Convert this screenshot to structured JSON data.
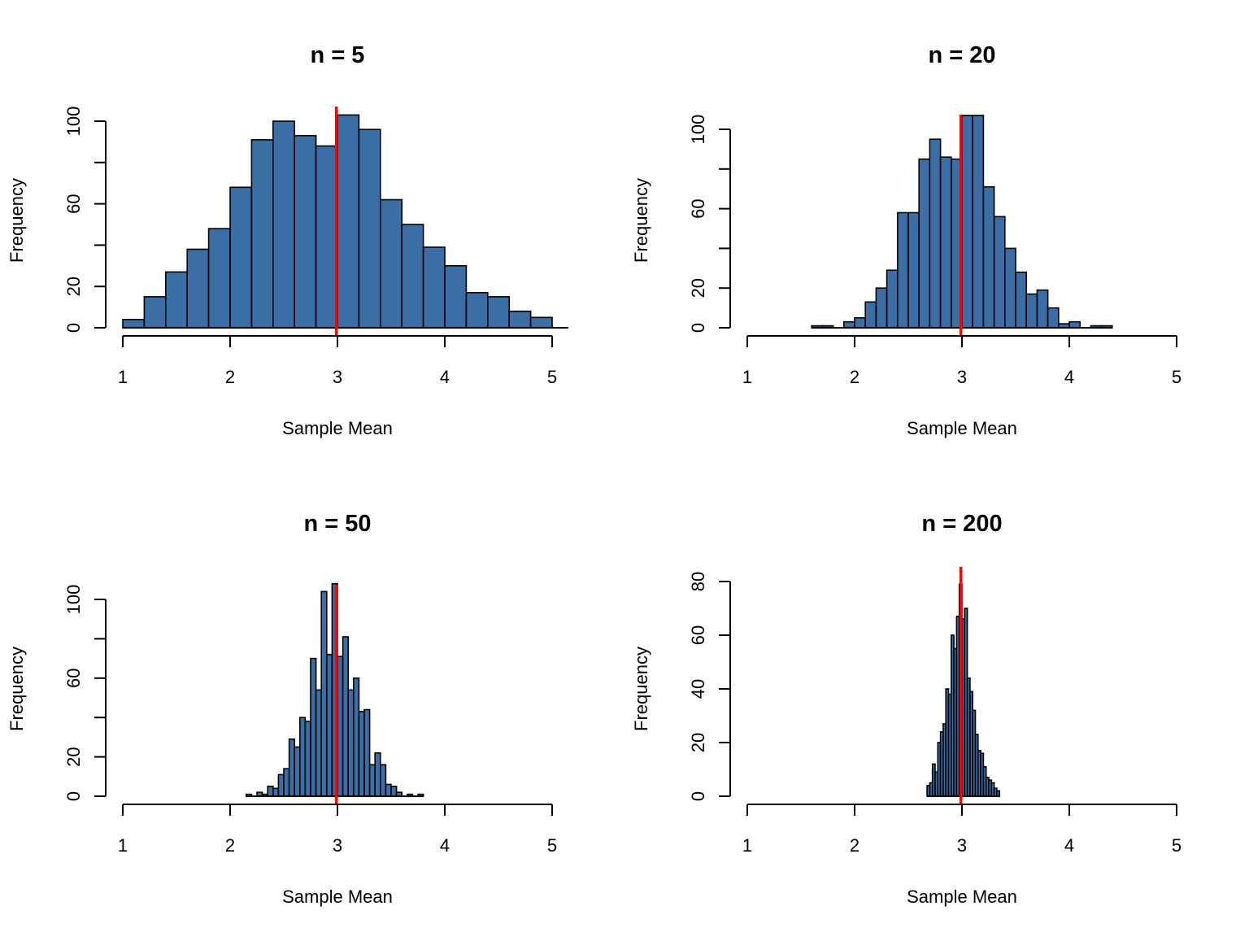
{
  "colors": {
    "bar_fill": "#3a6ea5",
    "bar_stroke": "#000000",
    "mean_line": "#ff0000",
    "axis": "#000000"
  },
  "chart_data": [
    {
      "type": "bar",
      "title": "n = 5",
      "xlabel": "Sample Mean",
      "ylabel": "Frequency",
      "xlim": [
        1,
        5
      ],
      "ylim": [
        0,
        100
      ],
      "x_ticks": [
        1,
        2,
        3,
        4,
        5
      ],
      "y_ticks": [
        0,
        20,
        40,
        60,
        80,
        100
      ],
      "y_tick_labels": [
        "0",
        "20",
        "",
        "60",
        "",
        "100"
      ],
      "bin_start": 1.0,
      "bin_width": 0.2,
      "values": [
        4,
        15,
        27,
        38,
        48,
        68,
        91,
        100,
        93,
        88,
        103,
        96,
        62,
        50,
        39,
        30,
        17,
        15,
        8,
        5
      ],
      "mean_line_x": 2.99,
      "baseline_end_x": 5.15
    },
    {
      "type": "bar",
      "title": "n = 20",
      "xlabel": "Sample Mean",
      "ylabel": "Frequency",
      "xlim": [
        1,
        5
      ],
      "ylim": [
        0,
        100
      ],
      "x_ticks": [
        1,
        2,
        3,
        4,
        5
      ],
      "y_ticks": [
        0,
        20,
        40,
        60,
        80,
        100
      ],
      "y_tick_labels": [
        "0",
        "20",
        "",
        "60",
        "",
        "100"
      ],
      "bin_start": 1.6,
      "bin_width": 0.1,
      "values": [
        1,
        1,
        0,
        3,
        5,
        13,
        20,
        29,
        58,
        58,
        85,
        95,
        86,
        85,
        107,
        107,
        71,
        56,
        40,
        28,
        17,
        19,
        10,
        2,
        3,
        0,
        1,
        1
      ],
      "mean_line_x": 2.99
    },
    {
      "type": "bar",
      "title": "n = 50",
      "xlabel": "Sample Mean",
      "ylabel": "Frequency",
      "xlim": [
        1,
        5
      ],
      "ylim": [
        0,
        100
      ],
      "x_ticks": [
        1,
        2,
        3,
        4,
        5
      ],
      "y_ticks": [
        0,
        20,
        40,
        60,
        80,
        100
      ],
      "y_tick_labels": [
        "0",
        "20",
        "",
        "60",
        "",
        "100"
      ],
      "bin_start": 2.15,
      "bin_width": 0.05,
      "values": [
        1,
        0,
        2,
        1,
        5,
        4,
        11,
        14,
        29,
        25,
        40,
        38,
        70,
        54,
        104,
        72,
        108,
        71,
        81,
        54,
        60,
        43,
        44,
        16,
        22,
        16,
        6,
        5,
        2,
        0,
        1,
        0,
        1
      ],
      "mean_line_x": 2.99
    },
    {
      "type": "bar",
      "title": "n = 200",
      "xlabel": "Sample Mean",
      "ylabel": "Frequency",
      "xlim": [
        1,
        5
      ],
      "ylim": [
        0,
        80
      ],
      "x_ticks": [
        1,
        2,
        3,
        4,
        5
      ],
      "y_ticks": [
        0,
        20,
        40,
        60,
        80
      ],
      "y_tick_labels": [
        "0",
        "20",
        "40",
        "60",
        "80"
      ],
      "bin_start": 2.675,
      "bin_width": 0.025,
      "values": [
        4,
        5,
        12,
        9,
        20,
        24,
        27,
        40,
        38,
        60,
        55,
        67,
        79,
        66,
        70,
        44,
        39,
        32,
        23,
        17,
        16,
        11,
        7,
        6,
        5,
        3,
        2
      ],
      "mean_line_x": 2.99
    }
  ]
}
